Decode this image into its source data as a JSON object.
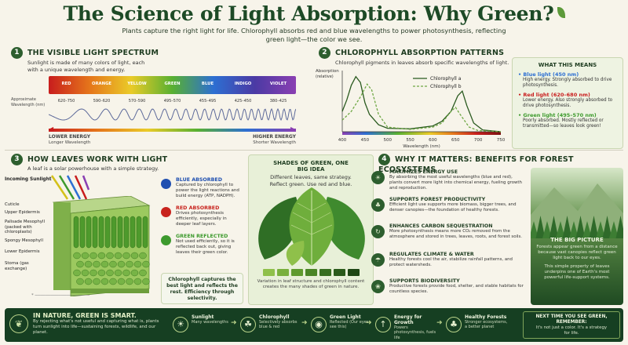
{
  "header": {
    "title": "The Science of Light Absorption: Why Green?",
    "subtitle": "Plants capture the right light for life. Chlorophyll absorbs red and blue wavelengths to power photosynthesis, reflecting green light—the color we see."
  },
  "spectrum_panel": {
    "number": "1",
    "title": "THE VISIBLE LIGHT SPECTRUM",
    "description": "Sunlight is made of many colors of light, each with a unique wavelength and energy.",
    "row_label": "Approximate Wavelength (nm)",
    "bands": [
      {
        "name": "RED",
        "range": "620–750"
      },
      {
        "name": "ORANGE",
        "range": "590–620"
      },
      {
        "name": "YELLOW",
        "range": "570–590"
      },
      {
        "name": "GREEN",
        "range": "495–570"
      },
      {
        "name": "BLUE",
        "range": "455–495"
      },
      {
        "name": "INDIGO",
        "range": "425–450"
      },
      {
        "name": "VIOLET",
        "range": "380–425"
      }
    ],
    "lower_energy": "LOWER ENERGY",
    "lower_sub": "Longer Wavelength",
    "higher_energy": "HIGHER ENERGY",
    "higher_sub": "Shorter Wavelength"
  },
  "absorption_panel": {
    "number": "2",
    "title": "CHLOROPHYLL ABSORPTION PATTERNS",
    "description": "Chlorophyll pigments in leaves absorb specific wavelengths of light.",
    "chart_data": {
      "type": "line",
      "ylabel": "Absorption (relative)",
      "xlabel": "Wavelength (nm)",
      "xlim": [
        400,
        750
      ],
      "xticks": [
        "400",
        "450",
        "500",
        "550",
        "600",
        "650",
        "700",
        "750"
      ],
      "series": [
        {
          "name": "Chlorophyll a",
          "x": [
            400,
            410,
            420,
            430,
            440,
            450,
            460,
            480,
            500,
            550,
            600,
            620,
            640,
            655,
            665,
            675,
            690,
            710,
            750
          ],
          "values": [
            0.35,
            0.55,
            0.8,
            0.95,
            0.85,
            0.5,
            0.3,
            0.12,
            0.06,
            0.05,
            0.1,
            0.18,
            0.35,
            0.62,
            0.7,
            0.45,
            0.15,
            0.03,
            0.0
          ]
        },
        {
          "name": "Chlorophyll b",
          "x": [
            400,
            420,
            440,
            455,
            465,
            480,
            500,
            550,
            600,
            620,
            640,
            650,
            660,
            680,
            700,
            750
          ],
          "values": [
            0.2,
            0.35,
            0.6,
            0.82,
            0.72,
            0.3,
            0.08,
            0.04,
            0.08,
            0.15,
            0.35,
            0.42,
            0.3,
            0.08,
            0.02,
            0.0
          ]
        }
      ]
    }
  },
  "meaning_box": {
    "title": "WHAT THIS MEANS",
    "items": [
      {
        "head": "Blue light (450 nm)",
        "text": "High energy. Strongly absorbed to drive photosynthesis.",
        "color": "#2d6fd2"
      },
      {
        "head": "Red light (620–680 nm)",
        "text": "Lower energy. Also strongly absorbed to drive photosynthesis.",
        "color": "#c81d1d"
      },
      {
        "head": "Green light (495–570 nm)",
        "text": "Poorly absorbed. Mostly reflected or transmitted—so leaves look green!",
        "color": "#3d9a2d"
      }
    ]
  },
  "leaves_panel": {
    "number": "3",
    "title": "HOW LEAVES WORK WITH LIGHT",
    "description": "A leaf is a solar powerhouse with a simple strategy.",
    "incoming": "Incoming Sunlight",
    "layers": [
      "Cuticle",
      "Upper Epidermis",
      "Palisade Mesophyll (packed with chloroplasts)",
      "Spongy Mesophyll",
      "Lower Epidermis",
      "Stoma (gas exchange)"
    ],
    "legend": [
      {
        "head": "BLUE ABSORBED",
        "text": "Captured by chlorophyll to power the light reactions and build energy (ATP, NADPH).",
        "color": "#1f4fb0"
      },
      {
        "head": "RED ABSORBED",
        "text": "Drives photosynthesis efficiently, especially in deeper leaf layers.",
        "color": "#c8231d"
      },
      {
        "head": "GREEN REFLECTED",
        "text": "Not used efficiently, so it is reflected back out, giving leaves their green color.",
        "color": "#3d9a2d"
      }
    ],
    "callout": "Chlorophyll captures the best light and reflects the rest. Efficiency through selectivity."
  },
  "shades_panel": {
    "title": "SHADES OF GREEN, ONE BIG IDEA",
    "lines": [
      "Different leaves, same strategy.",
      "Reflect green. Use red and blue."
    ],
    "swatches": [
      "#8fc04a",
      "#79b03c",
      "#5f9a2e",
      "#4a8526",
      "#376e1f",
      "#2a5a1a",
      "#1e4614"
    ],
    "caption": "Variation in leaf structure and chlorophyll content creates the many shades of green in nature."
  },
  "why_panel": {
    "number": "4",
    "title": "WHY IT MATTERS: BENEFITS FOR FOREST ECOSYSTEMS",
    "benefits": [
      {
        "head": "MAXIMIZES ENERGY USE",
        "text": "By absorbing the most useful wavelengths (blue and red), plants convert more light into chemical energy, fueling growth and reproduction.",
        "icon": "☀"
      },
      {
        "head": "SUPPORTS FOREST PRODUCTIVITY",
        "text": "Efficient light use supports more biomass, bigger trees, and denser canopies—the foundation of healthy forests.",
        "icon": "♣"
      },
      {
        "head": "ENHANCES CARBON SEQUESTRATION",
        "text": "More photosynthesis means more CO₂ removed from the atmosphere and stored in trees, leaves, roots, and forest soils.",
        "icon": "↻"
      },
      {
        "head": "REGULATES CLIMATE & WATER",
        "text": "Healthy forests cool the air, stabilize rainfall patterns, and protect watersheds.",
        "icon": "☂"
      },
      {
        "head": "SUPPORTS BIODIVERSITY",
        "text": "Productive forests provide food, shelter, and stable habitats for countless species.",
        "icon": "❀"
      }
    ],
    "big_picture_title": "THE BIG PICTURE",
    "big_picture_text": "Forests appear green from a distance because vast canopies reflect green light back to our eyes.",
    "big_picture_text2": "This simple property of leaves underpins one of Earth's most powerful life-support systems."
  },
  "footer": {
    "headline": "IN NATURE, GREEN IS SMART.",
    "text": "By rejecting what's not useful and capturing what is, plants turn sunlight into life—sustaining forests, wildlife, and our planet.",
    "steps": [
      {
        "head": "Sunlight",
        "text": "Many wavelengths",
        "icon": "☀"
      },
      {
        "head": "Chlorophyll",
        "text": "Selectively absorbs blue & red",
        "icon": "☘"
      },
      {
        "head": "Green Light",
        "text": "Reflected (Our eyes see this)",
        "icon": "◉"
      },
      {
        "head": "Energy for Growth",
        "text": "Powers photosynthesis, fuels life",
        "icon": "↑"
      },
      {
        "head": "Healthy Forests",
        "text": "Stronger ecosystems, a better planet",
        "icon": "♣"
      }
    ],
    "next_time_head": "NEXT TIME YOU SEE GREEN, REMEMBER:",
    "next_time_text": "It's not just a color. It's a strategy for life."
  }
}
